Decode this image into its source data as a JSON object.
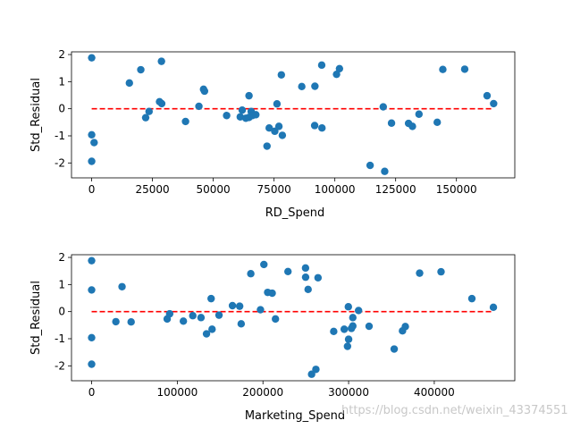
{
  "watermark": "https://blog.csdn.net/weixin_43374551",
  "chart_data": [
    {
      "type": "scatter",
      "title": "",
      "xlabel": "RD_Spend",
      "ylabel": "Std_Residual",
      "xlim": [
        -8300,
        174000
      ],
      "ylim": [
        -2.55,
        2.1
      ],
      "xticks": [
        0,
        25000,
        50000,
        75000,
        100000,
        125000,
        150000
      ],
      "yticks": [
        -2,
        -1,
        0,
        1,
        2
      ],
      "grid": false,
      "point_color": "#1f77b4",
      "reference_line": {
        "y": 0,
        "color": "#ff0000",
        "style": "dashed"
      },
      "points": [
        [
          0,
          1.88
        ],
        [
          0,
          -0.96
        ],
        [
          0,
          -1.94
        ],
        [
          1000,
          -1.25
        ],
        [
          15500,
          0.95
        ],
        [
          20200,
          1.44
        ],
        [
          22200,
          -0.33
        ],
        [
          23600,
          -0.1
        ],
        [
          27900,
          0.26
        ],
        [
          28700,
          1.75
        ],
        [
          28800,
          0.19
        ],
        [
          38600,
          -0.47
        ],
        [
          44100,
          0.09
        ],
        [
          46000,
          0.72
        ],
        [
          46400,
          0.65
        ],
        [
          55500,
          -0.25
        ],
        [
          61100,
          -0.3
        ],
        [
          61900,
          -0.05
        ],
        [
          63400,
          -0.35
        ],
        [
          64700,
          0.48
        ],
        [
          64700,
          -0.32
        ],
        [
          65600,
          -0.1
        ],
        [
          66100,
          -0.25
        ],
        [
          67500,
          -0.22
        ],
        [
          72100,
          -1.38
        ],
        [
          73000,
          -0.71
        ],
        [
          75300,
          -0.83
        ],
        [
          76200,
          0.18
        ],
        [
          77000,
          -0.65
        ],
        [
          78000,
          1.25
        ],
        [
          78400,
          -0.98
        ],
        [
          86400,
          0.82
        ],
        [
          91700,
          -0.62
        ],
        [
          91800,
          0.83
        ],
        [
          94600,
          1.61
        ],
        [
          94700,
          -0.71
        ],
        [
          100700,
          1.27
        ],
        [
          101900,
          1.48
        ],
        [
          114500,
          -2.09
        ],
        [
          119900,
          0.07
        ],
        [
          120500,
          -2.31
        ],
        [
          123300,
          -0.53
        ],
        [
          130300,
          -0.54
        ],
        [
          131900,
          -0.65
        ],
        [
          134600,
          -0.2
        ],
        [
          142100,
          -0.5
        ],
        [
          144400,
          1.45
        ],
        [
          153400,
          1.46
        ],
        [
          162600,
          0.48
        ],
        [
          165300,
          0.19
        ]
      ]
    },
    {
      "type": "scatter",
      "title": "",
      "xlabel": "Marketing_Spend",
      "ylabel": "Std_Residual",
      "xlim": [
        -23500,
        494000
      ],
      "ylim": [
        -2.55,
        2.1
      ],
      "xticks": [
        0,
        100000,
        200000,
        300000,
        400000
      ],
      "yticks": [
        -2,
        -1,
        0,
        1,
        2
      ],
      "grid": false,
      "point_color": "#1f77b4",
      "reference_line": {
        "y": 0,
        "color": "#ff0000",
        "style": "dashed"
      },
      "points": [
        [
          0,
          1.88
        ],
        [
          0,
          0.8
        ],
        [
          0,
          -0.96
        ],
        [
          0,
          -1.94
        ],
        [
          28300,
          -0.37
        ],
        [
          35500,
          0.92
        ],
        [
          46100,
          -0.38
        ],
        [
          88200,
          -0.27
        ],
        [
          91100,
          -0.08
        ],
        [
          107100,
          -0.35
        ],
        [
          118100,
          -0.15
        ],
        [
          127700,
          -0.22
        ],
        [
          134100,
          -0.82
        ],
        [
          139500,
          0.48
        ],
        [
          140600,
          -0.65
        ],
        [
          148700,
          -0.13
        ],
        [
          164400,
          0.22
        ],
        [
          172800,
          0.2
        ],
        [
          174600,
          -0.45
        ],
        [
          185800,
          1.4
        ],
        [
          197100,
          0.07
        ],
        [
          201100,
          1.74
        ],
        [
          205500,
          0.71
        ],
        [
          210800,
          0.68
        ],
        [
          214600,
          -0.27
        ],
        [
          229200,
          1.48
        ],
        [
          249700,
          1.61
        ],
        [
          249800,
          1.27
        ],
        [
          252700,
          0.82
        ],
        [
          256800,
          -2.31
        ],
        [
          261800,
          -2.13
        ],
        [
          264300,
          1.25
        ],
        [
          282600,
          -0.73
        ],
        [
          294900,
          -0.65
        ],
        [
          298700,
          -1.28
        ],
        [
          299700,
          0.18
        ],
        [
          300000,
          -1.02
        ],
        [
          303300,
          -0.62
        ],
        [
          304900,
          -0.53
        ],
        [
          304900,
          -0.22
        ],
        [
          311600,
          0.04
        ],
        [
          323900,
          -0.54
        ],
        [
          353200,
          -1.38
        ],
        [
          362900,
          -0.71
        ],
        [
          366200,
          -0.55
        ],
        [
          382900,
          1.42
        ],
        [
          407900,
          1.47
        ],
        [
          443900,
          0.48
        ],
        [
          469000,
          0.16
        ]
      ]
    }
  ]
}
